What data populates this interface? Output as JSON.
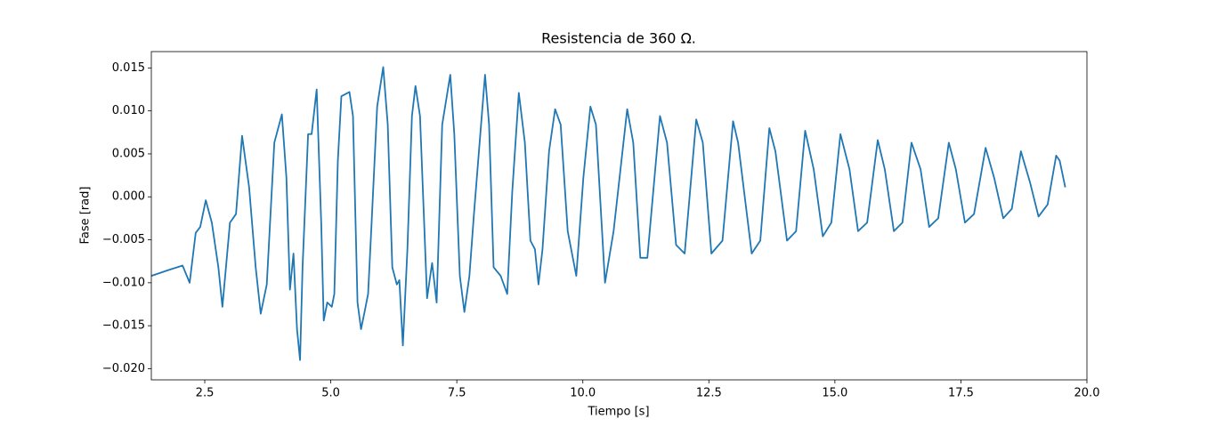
{
  "chart_data": {
    "type": "line",
    "title": "Resistencia de 360 Ω.",
    "x_label": "Tiempo [s]",
    "y_label": "Fase [rad]",
    "color": "#1f77b4",
    "x": [
      1.44,
      1.79,
      2.06,
      2.2,
      2.32,
      2.41,
      2.52,
      2.64,
      2.77,
      2.85,
      3.0,
      3.12,
      3.24,
      3.38,
      3.51,
      3.61,
      3.73,
      3.88,
      4.03,
      4.12,
      4.19,
      4.26,
      4.33,
      4.39,
      4.44,
      4.55,
      4.62,
      4.72,
      4.81,
      4.86,
      4.93,
      5.02,
      5.07,
      5.14,
      5.21,
      5.37,
      5.44,
      5.53,
      5.6,
      5.67,
      5.74,
      5.81,
      5.92,
      6.04,
      6.13,
      6.22,
      6.31,
      6.36,
      6.43,
      6.52,
      6.61,
      6.68,
      6.77,
      6.91,
      7.01,
      7.1,
      7.21,
      7.37,
      7.45,
      7.56,
      7.65,
      7.75,
      7.84,
      8.06,
      8.14,
      8.23,
      8.37,
      8.5,
      8.6,
      8.73,
      8.85,
      8.96,
      9.05,
      9.12,
      9.2,
      9.33,
      9.45,
      9.56,
      9.7,
      9.87,
      10.01,
      10.15,
      10.26,
      10.44,
      10.61,
      10.88,
      11.0,
      11.14,
      11.28,
      11.53,
      11.67,
      11.85,
      12.02,
      12.25,
      12.38,
      12.55,
      12.77,
      12.98,
      13.08,
      13.35,
      13.52,
      13.7,
      13.82,
      14.05,
      14.23,
      14.41,
      14.58,
      14.76,
      14.93,
      15.11,
      15.29,
      15.46,
      15.64,
      15.85,
      15.99,
      16.17,
      16.34,
      16.52,
      16.7,
      16.87,
      17.05,
      17.26,
      17.4,
      17.58,
      17.76,
      17.99,
      18.16,
      18.34,
      18.51,
      18.69,
      18.87,
      19.04,
      19.22,
      19.39,
      19.46,
      19.57
    ],
    "values": [
      -0.0092,
      -0.0085,
      -0.008,
      -0.01,
      -0.0042,
      -0.0035,
      -0.0004,
      -0.003,
      -0.0082,
      -0.0128,
      -0.003,
      -0.002,
      0.0071,
      0.0011,
      -0.0082,
      -0.0136,
      -0.0102,
      0.0063,
      0.0096,
      0.0022,
      -0.0108,
      -0.0066,
      -0.0154,
      -0.019,
      -0.0082,
      0.0073,
      0.0073,
      0.0125,
      -0.003,
      -0.0144,
      -0.0123,
      -0.0128,
      -0.0113,
      0.0042,
      0.0117,
      0.0122,
      0.0094,
      -0.0123,
      -0.0154,
      -0.0134,
      -0.0113,
      -0.003,
      0.0105,
      0.0151,
      0.0084,
      -0.0082,
      -0.0102,
      -0.0097,
      -0.0173,
      -0.0061,
      0.0094,
      0.0129,
      0.0094,
      -0.0118,
      -0.0077,
      -0.0123,
      0.0084,
      0.0142,
      0.0073,
      -0.0092,
      -0.0134,
      -0.0092,
      -0.002,
      0.0142,
      0.0084,
      -0.0082,
      -0.0092,
      -0.0113,
      0.0006,
      0.0121,
      0.0063,
      -0.0051,
      -0.0061,
      -0.0102,
      -0.0061,
      0.0053,
      0.0102,
      0.0084,
      -0.004,
      -0.0092,
      0.0022,
      0.0105,
      0.0084,
      -0.01,
      -0.004,
      0.0102,
      0.0063,
      -0.0071,
      -0.0071,
      0.0094,
      0.0063,
      -0.0056,
      -0.0066,
      0.009,
      0.0063,
      -0.0066,
      -0.0051,
      0.0088,
      0.0063,
      -0.0066,
      -0.0051,
      0.008,
      0.0053,
      -0.0051,
      -0.004,
      0.0077,
      0.0032,
      -0.0046,
      -0.003,
      0.0073,
      0.0032,
      -0.004,
      -0.003,
      0.0066,
      0.0032,
      -0.004,
      -0.003,
      0.0063,
      0.0032,
      -0.0035,
      -0.0025,
      0.0063,
      0.0032,
      -0.003,
      -0.002,
      0.0057,
      0.0022,
      -0.0025,
      -0.0014,
      0.0053,
      0.0017,
      -0.0023,
      -0.0009,
      0.0048,
      0.0042,
      0.0011
    ],
    "xlim": [
      1.44,
      20.0
    ],
    "ylim": [
      -0.0213,
      0.0169
    ],
    "xticks": [
      2.5,
      {
        "value": 5,
        "label": "5.0"
      },
      7.5,
      {
        "value": 10,
        "label": "10.0"
      },
      12.5,
      {
        "value": 15,
        "label": "15.0"
      },
      17.5,
      {
        "value": 20,
        "label": "20.0"
      }
    ],
    "yticks": [
      {
        "value": -0.02,
        "label": "−0.020"
      },
      {
        "value": -0.015,
        "label": "−0.015"
      },
      {
        "value": -0.01,
        "label": "−0.010"
      },
      {
        "value": -0.005,
        "label": "−0.005"
      },
      {
        "value": 0,
        "label": "0.000"
      },
      0.005,
      {
        "value": 0.01,
        "label": "0.010"
      },
      0.015
    ]
  }
}
